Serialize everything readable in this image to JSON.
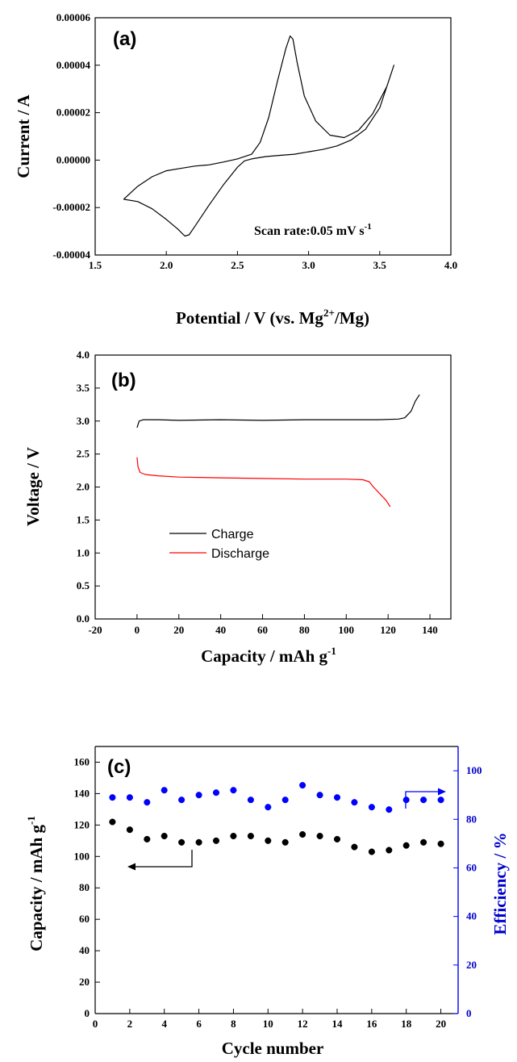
{
  "chart_data": [
    {
      "panel": "(a)",
      "type": "line",
      "xlabel": "Potential / V (vs. Mg",
      "xlabel_sup": "2+",
      "xlabel_tail": "/Mg)",
      "ylabel": "Current / A",
      "xlim": [
        1.5,
        4.0
      ],
      "ylim": [
        -4e-05,
        6e-05
      ],
      "xticks": [
        "1.5",
        "2.0",
        "2.5",
        "3.0",
        "3.5",
        "4.0"
      ],
      "yticks": [
        "-0.00004",
        "-0.00002",
        "0.00000",
        "0.00002",
        "0.00004",
        "0.00006"
      ],
      "annotation": "Scan rate:0.05 mV s",
      "annotation_sup": "-1",
      "series": [
        {
          "color": "#000000",
          "points": [
            [
              1.7,
              -1.65e-05
            ],
            [
              1.8,
              -1.75e-05
            ],
            [
              1.9,
              -2.05e-05
            ],
            [
              2.0,
              -2.5e-05
            ],
            [
              2.08,
              -2.9e-05
            ],
            [
              2.13,
              -3.2e-05
            ],
            [
              2.16,
              -3.15e-05
            ],
            [
              2.2,
              -2.8e-05
            ],
            [
              2.3,
              -1.9e-05
            ],
            [
              2.4,
              -1.05e-05
            ],
            [
              2.5,
              -3e-06
            ],
            [
              2.55,
              -3e-07
            ],
            [
              2.6,
              5e-07
            ],
            [
              2.7,
              1.5e-06
            ],
            [
              2.8,
              2e-06
            ],
            [
              2.9,
              2.5e-06
            ],
            [
              3.0,
              3.5e-06
            ],
            [
              3.1,
              4.5e-06
            ],
            [
              3.2,
              6e-06
            ],
            [
              3.3,
              8.5e-06
            ],
            [
              3.4,
              1.3e-05
            ],
            [
              3.5,
              2.2e-05
            ],
            [
              3.6,
              4e-05
            ],
            [
              3.55,
              3.1e-05
            ],
            [
              3.45,
              1.95e-05
            ],
            [
              3.35,
              1.25e-05
            ],
            [
              3.25,
              9.5e-06
            ],
            [
              3.15,
              1.05e-05
            ],
            [
              3.05,
              1.65e-05
            ],
            [
              2.97,
              2.7e-05
            ],
            [
              2.92,
              4.1e-05
            ],
            [
              2.89,
              5.1e-05
            ],
            [
              2.87,
              5.23e-05
            ],
            [
              2.84,
              4.7e-05
            ],
            [
              2.78,
              3.3e-05
            ],
            [
              2.72,
              1.8e-05
            ],
            [
              2.66,
              7.5e-06
            ],
            [
              2.6,
              2.5e-06
            ],
            [
              2.5,
              5e-07
            ],
            [
              2.4,
              -8e-07
            ],
            [
              2.3,
              -2e-06
            ],
            [
              2.2,
              -2.5e-06
            ],
            [
              2.1,
              -3.5e-06
            ],
            [
              2.0,
              -4.5e-06
            ],
            [
              1.9,
              -7e-06
            ],
            [
              1.8,
              -1.1e-05
            ],
            [
              1.7,
              -1.65e-05
            ]
          ]
        }
      ]
    },
    {
      "panel": "(b)",
      "type": "line",
      "xlabel": "Capacity / mAh g",
      "xlabel_sup": "-1",
      "ylabel": "Voltage / V",
      "xlim": [
        -20,
        150
      ],
      "ylim": [
        0.0,
        4.0
      ],
      "xticks": [
        "-20",
        "0",
        "20",
        "40",
        "60",
        "80",
        "100",
        "120",
        "140"
      ],
      "yticks": [
        "0.0",
        "0.5",
        "1.0",
        "1.5",
        "2.0",
        "2.5",
        "3.0",
        "3.5",
        "4.0"
      ],
      "legend_position": "center-left",
      "series": [
        {
          "name": "Charge",
          "color": "#000000",
          "points": [
            [
              0,
              2.9
            ],
            [
              1,
              3.0
            ],
            [
              3,
              3.02
            ],
            [
              10,
              3.02
            ],
            [
              20,
              3.01
            ],
            [
              40,
              3.02
            ],
            [
              60,
              3.01
            ],
            [
              80,
              3.02
            ],
            [
              100,
              3.02
            ],
            [
              115,
              3.02
            ],
            [
              125,
              3.03
            ],
            [
              128,
              3.05
            ],
            [
              131,
              3.15
            ],
            [
              133,
              3.3
            ],
            [
              135,
              3.4
            ]
          ]
        },
        {
          "name": "Discharge",
          "color": "#ff0000",
          "points": [
            [
              0,
              2.45
            ],
            [
              0.5,
              2.3
            ],
            [
              1.5,
              2.22
            ],
            [
              4,
              2.19
            ],
            [
              10,
              2.17
            ],
            [
              20,
              2.15
            ],
            [
              40,
              2.14
            ],
            [
              60,
              2.13
            ],
            [
              80,
              2.12
            ],
            [
              100,
              2.12
            ],
            [
              108,
              2.11
            ],
            [
              111,
              2.08
            ],
            [
              113,
              2.0
            ],
            [
              116,
              1.9
            ],
            [
              119,
              1.8
            ],
            [
              121,
              1.7
            ]
          ]
        }
      ]
    },
    {
      "panel": "(c)",
      "type": "scatter",
      "xlabel": "Cycle number",
      "ylabel": "Capacity / mAh g",
      "ylabel_sup": "-1",
      "ylabel_right": "Efficiency / %",
      "xlim": [
        0,
        21
      ],
      "ylim": [
        0,
        170
      ],
      "ylim_right": [
        0,
        110
      ],
      "xticks": [
        "0",
        "2",
        "4",
        "6",
        "8",
        "10",
        "12",
        "14",
        "16",
        "18",
        "20"
      ],
      "yticks": [
        "0",
        "20",
        "40",
        "60",
        "80",
        "100",
        "120",
        "140",
        "160"
      ],
      "yticks_right": [
        "0",
        "20",
        "40",
        "60",
        "80",
        "100"
      ],
      "series": [
        {
          "name": "Capacity",
          "axis": "left",
          "color": "#000000",
          "x": [
            1,
            2,
            3,
            4,
            5,
            6,
            7,
            8,
            9,
            10,
            11,
            12,
            13,
            14,
            15,
            16,
            17,
            18,
            19,
            20
          ],
          "y": [
            122,
            117,
            111,
            113,
            109,
            109,
            110,
            113,
            113,
            110,
            109,
            114,
            113,
            111,
            106,
            103,
            104,
            107,
            109,
            108
          ]
        },
        {
          "name": "Efficiency",
          "axis": "right",
          "color": "#0000ff",
          "x": [
            1,
            2,
            3,
            4,
            5,
            6,
            7,
            8,
            9,
            10,
            11,
            12,
            13,
            14,
            15,
            16,
            17,
            18,
            19,
            20
          ],
          "y": [
            89,
            89,
            87,
            92,
            88,
            90,
            91,
            92,
            88,
            85,
            88,
            94,
            90,
            89,
            87,
            85,
            84,
            88,
            88,
            88
          ]
        }
      ]
    }
  ]
}
